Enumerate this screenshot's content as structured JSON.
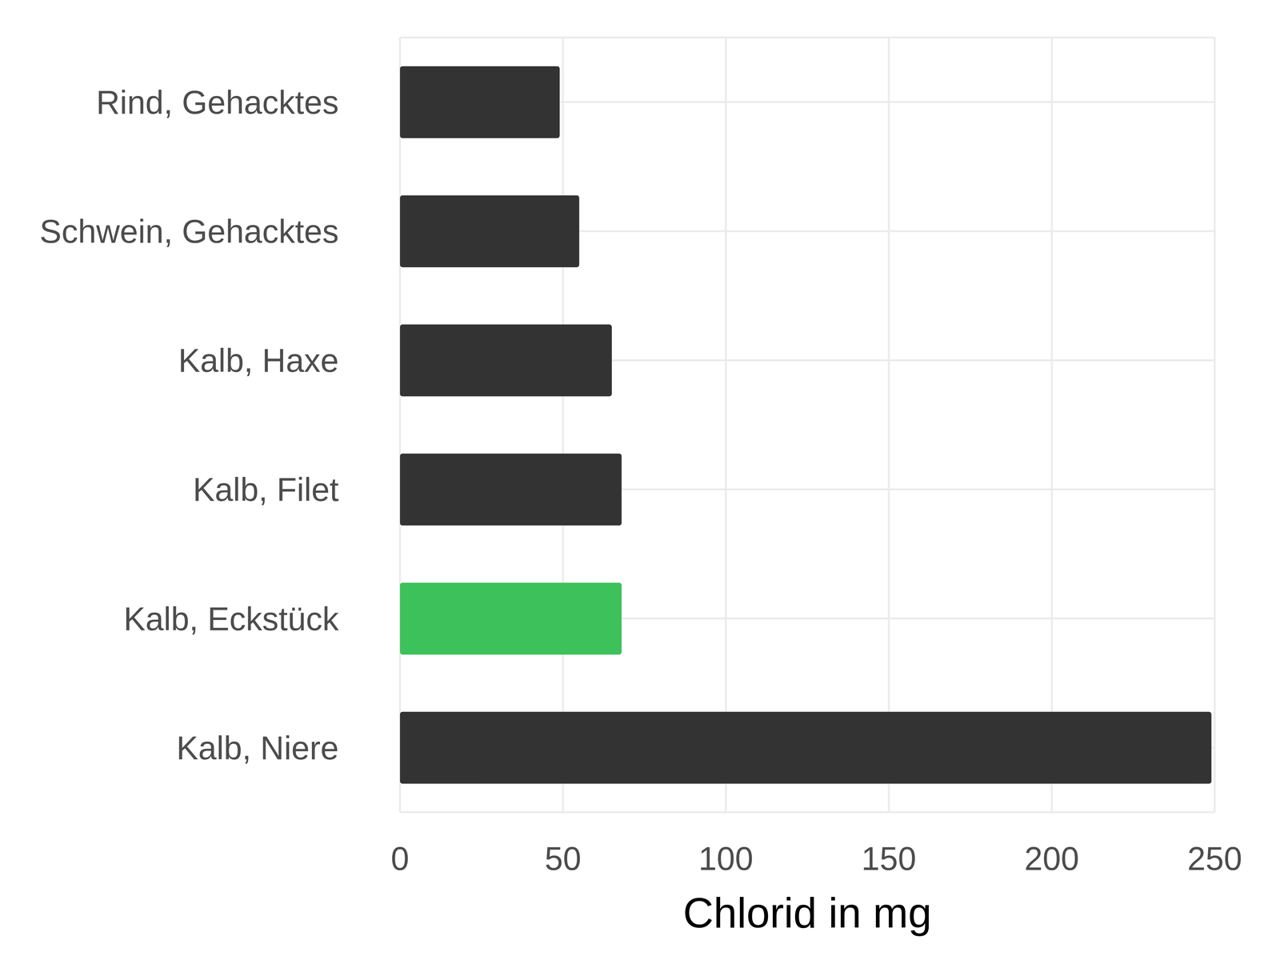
{
  "chart_data": {
    "type": "bar",
    "orientation": "horizontal",
    "x_label": "Chlorid in mg",
    "categories": [
      "Rind, Gehacktes",
      "Schwein, Gehacktes",
      "Kalb, Haxe",
      "Kalb, Filet",
      "Kalb, Eckstück",
      "Kalb, Niere"
    ],
    "values": [
      49,
      55,
      65,
      68,
      68,
      249
    ],
    "colors": [
      "#333333",
      "#333333",
      "#333333",
      "#333333",
      "#3dc15a",
      "#333333"
    ],
    "xlim": [
      0,
      250
    ],
    "xticks": [
      0,
      50,
      100,
      150,
      200,
      250
    ],
    "grid": true
  }
}
